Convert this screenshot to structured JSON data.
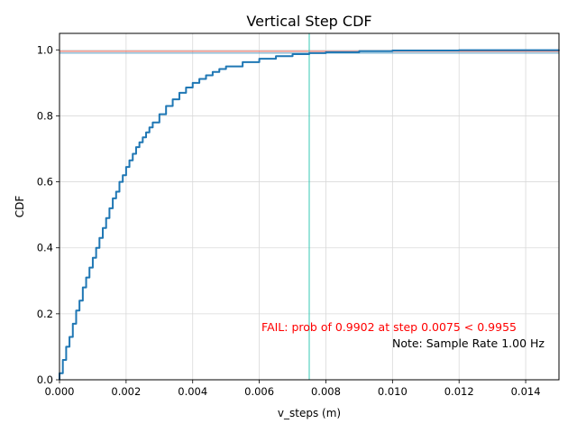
{
  "chart_data": {
    "type": "line",
    "title": "Vertical Step CDF",
    "xlabel": "v_steps (m)",
    "ylabel": "CDF",
    "xlim": [
      0,
      0.015
    ],
    "ylim": [
      0,
      1.05
    ],
    "x_ticks": [
      0,
      0.002,
      0.004,
      0.006,
      0.008,
      0.01,
      0.012,
      0.014
    ],
    "x_tick_labels": [
      "0.000",
      "0.002",
      "0.004",
      "0.006",
      "0.008",
      "0.010",
      "0.012",
      "0.014"
    ],
    "y_ticks": [
      0,
      0.2,
      0.4,
      0.6,
      0.8,
      1.0
    ],
    "y_tick_labels": [
      "0.0",
      "0.2",
      "0.4",
      "0.6",
      "0.8",
      "1.0"
    ],
    "grid": true,
    "series": [
      {
        "color": "#1f77b4",
        "x": [
          0,
          0.0001,
          0.0002,
          0.0003,
          0.0004,
          0.0005,
          0.0006,
          0.0007,
          0.0008,
          0.0009,
          0.001,
          0.0011,
          0.0012,
          0.0013,
          0.0014,
          0.0015,
          0.0016,
          0.0017,
          0.0018,
          0.0019,
          0.002,
          0.0021,
          0.0022,
          0.0023,
          0.0024,
          0.0025,
          0.0026,
          0.0027,
          0.0028,
          0.003,
          0.0032,
          0.0034,
          0.0036,
          0.0038,
          0.004,
          0.0042,
          0.0044,
          0.0046,
          0.0048,
          0.005,
          0.0055,
          0.006,
          0.0065,
          0.007,
          0.0075,
          0.008,
          0.009,
          0.01,
          0.012,
          0.015
        ],
        "y": [
          0.02,
          0.06,
          0.1,
          0.13,
          0.17,
          0.21,
          0.24,
          0.28,
          0.31,
          0.34,
          0.37,
          0.4,
          0.43,
          0.46,
          0.49,
          0.52,
          0.55,
          0.57,
          0.6,
          0.62,
          0.645,
          0.665,
          0.685,
          0.705,
          0.72,
          0.735,
          0.75,
          0.765,
          0.78,
          0.805,
          0.83,
          0.85,
          0.87,
          0.886,
          0.9,
          0.912,
          0.923,
          0.933,
          0.942,
          0.95,
          0.963,
          0.973,
          0.981,
          0.987,
          0.9902,
          0.993,
          0.996,
          0.998,
          0.999,
          1.0
        ]
      }
    ],
    "reference_lines": [
      {
        "orientation": "horizontal",
        "value": 0.9955,
        "color": "#e05a4a"
      },
      {
        "orientation": "horizontal",
        "value": 0.9902,
        "color": "#5aa0c8"
      },
      {
        "orientation": "vertical",
        "value": 0.0075,
        "color": "#35c9b4"
      }
    ],
    "annotations": [
      {
        "text": "FAIL: prob of 0.9902 at step 0.0075 < 0.9955",
        "color": "#ff0000"
      },
      {
        "text": "Note: Sample Rate 1.00 Hz",
        "color": "#000000"
      }
    ]
  }
}
